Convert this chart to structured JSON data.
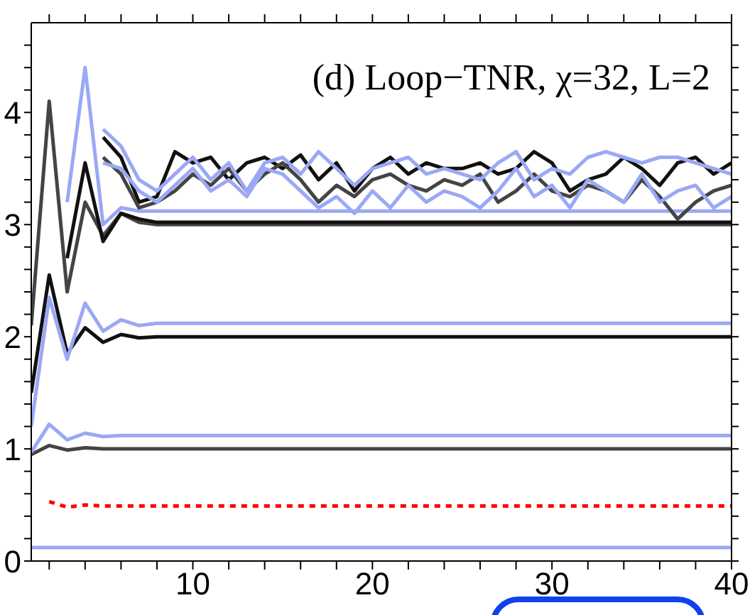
{
  "chart_data": {
    "type": "line",
    "title": "(d) Loop−TNR, χ=32, L=2",
    "x": [
      1,
      2,
      3,
      4,
      5,
      6,
      7,
      8,
      9,
      10,
      11,
      12,
      13,
      14,
      15,
      16,
      17,
      18,
      19,
      20,
      21,
      22,
      23,
      24,
      25,
      26,
      27,
      28,
      29,
      30,
      31,
      32,
      33,
      34,
      35,
      36,
      37,
      38,
      39,
      40
    ],
    "xlim": [
      1,
      40
    ],
    "xticks": [
      {
        "value": 2,
        "label": null
      },
      {
        "value": 4,
        "label": null
      },
      {
        "value": 6,
        "label": null
      },
      {
        "value": 8,
        "label": null
      },
      10,
      {
        "value": 12,
        "label": null
      },
      {
        "value": 14,
        "label": null
      },
      {
        "value": 16,
        "label": null
      },
      {
        "value": 18,
        "label": null
      },
      20,
      {
        "value": 22,
        "label": null
      },
      {
        "value": 24,
        "label": null
      },
      {
        "value": 26,
        "label": null
      },
      {
        "value": 28,
        "label": null
      },
      30,
      {
        "value": 32,
        "label": null
      },
      {
        "value": 34,
        "label": null
      },
      {
        "value": 36,
        "label": null
      },
      {
        "value": 38,
        "label": null
      },
      40
    ],
    "ylim": [
      0,
      4.8
    ],
    "yticks": [
      0,
      {
        "value": 0.2,
        "label": null
      },
      {
        "value": 0.4,
        "label": null
      },
      {
        "value": 0.6,
        "label": null
      },
      {
        "value": 0.8,
        "label": null
      },
      1,
      {
        "value": 1.2,
        "label": null
      },
      {
        "value": 1.4,
        "label": null
      },
      {
        "value": 1.6,
        "label": null
      },
      {
        "value": 1.8,
        "label": null
      },
      2,
      {
        "value": 2.2,
        "label": null
      },
      {
        "value": 2.4,
        "label": null
      },
      {
        "value": 2.6,
        "label": null
      },
      {
        "value": 2.8,
        "label": null
      },
      3,
      {
        "value": 3.2,
        "label": null
      },
      {
        "value": 3.4,
        "label": null
      },
      {
        "value": 3.6,
        "label": null
      },
      {
        "value": 3.8,
        "label": null
      },
      4,
      {
        "value": 4.2,
        "label": null
      },
      {
        "value": 4.4,
        "label": null
      },
      {
        "value": 4.6,
        "label": null
      }
    ],
    "grid": false,
    "legend": false,
    "marker": "none",
    "series": [
      {
        "color": "#9aa8f5",
        "values": [
          0.12,
          0.12,
          0.12,
          0.12,
          0.12,
          0.12,
          0.12,
          0.12,
          0.12,
          0.12,
          0.12,
          0.12,
          0.12,
          0.12,
          0.12,
          0.12,
          0.12,
          0.12,
          0.12,
          0.12,
          0.12,
          0.12,
          0.12,
          0.12,
          0.12,
          0.12,
          0.12,
          0.12,
          0.12,
          0.12,
          0.12,
          0.12,
          0.12,
          0.12,
          0.12,
          0.12,
          0.12,
          0.12,
          0.12,
          0.12
        ]
      },
      {
        "color": "#ff0000",
        "line_style": "dotted",
        "values": [
          null,
          0.53,
          0.48,
          0.5,
          0.49,
          0.49,
          0.49,
          0.49,
          0.49,
          0.49,
          0.49,
          0.49,
          0.49,
          0.49,
          0.49,
          0.49,
          0.49,
          0.49,
          0.49,
          0.49,
          0.49,
          0.49,
          0.49,
          0.49,
          0.49,
          0.49,
          0.49,
          0.49,
          0.49,
          0.49,
          0.49,
          0.49,
          0.49,
          0.49,
          0.49,
          0.49,
          0.49,
          0.49,
          0.49,
          0.49
        ]
      },
      {
        "color": "#444444",
        "values": [
          0.95,
          1.03,
          0.99,
          1.01,
          1.0,
          1.0,
          1.0,
          1.0,
          1.0,
          1.0,
          1.0,
          1.0,
          1.0,
          1.0,
          1.0,
          1.0,
          1.0,
          1.0,
          1.0,
          1.0,
          1.0,
          1.0,
          1.0,
          1.0,
          1.0,
          1.0,
          1.0,
          1.0,
          1.0,
          1.0,
          1.0,
          1.0,
          1.0,
          1.0,
          1.0,
          1.0,
          1.0,
          1.0,
          1.0,
          1.0
        ]
      },
      {
        "color": "#9aa8f5",
        "values": [
          0.97,
          1.22,
          1.08,
          1.14,
          1.11,
          1.12,
          1.12,
          1.12,
          1.12,
          1.12,
          1.12,
          1.12,
          1.12,
          1.12,
          1.12,
          1.12,
          1.12,
          1.12,
          1.12,
          1.12,
          1.12,
          1.12,
          1.12,
          1.12,
          1.12,
          1.12,
          1.12,
          1.12,
          1.12,
          1.12,
          1.12,
          1.12,
          1.12,
          1.12,
          1.12,
          1.12,
          1.12,
          1.12,
          1.12,
          1.12
        ]
      },
      {
        "color": "#111111",
        "values": [
          1.5,
          2.55,
          1.85,
          2.08,
          1.95,
          2.02,
          1.99,
          2.0,
          2.0,
          2.0,
          2.0,
          2.0,
          2.0,
          2.0,
          2.0,
          2.0,
          2.0,
          2.0,
          2.0,
          2.0,
          2.0,
          2.0,
          2.0,
          2.0,
          2.0,
          2.0,
          2.0,
          2.0,
          2.0,
          2.0,
          2.0,
          2.0,
          2.0,
          2.0,
          2.0,
          2.0,
          2.0,
          2.0,
          2.0,
          2.0
        ]
      },
      {
        "color": "#9aa8f5",
        "values": [
          1.2,
          2.35,
          1.8,
          2.3,
          2.05,
          2.15,
          2.1,
          2.12,
          2.12,
          2.12,
          2.12,
          2.12,
          2.12,
          2.12,
          2.12,
          2.12,
          2.12,
          2.12,
          2.12,
          2.12,
          2.12,
          2.12,
          2.12,
          2.12,
          2.12,
          2.12,
          2.12,
          2.12,
          2.12,
          2.12,
          2.12,
          2.12,
          2.12,
          2.12,
          2.12,
          2.12,
          2.12,
          2.12,
          2.12,
          2.12
        ]
      },
      {
        "color": "#444444",
        "values": [
          2.1,
          4.1,
          2.4,
          3.2,
          2.9,
          3.1,
          3.02,
          3.0,
          3.0,
          3.0,
          3.0,
          3.0,
          3.0,
          3.0,
          3.0,
          3.0,
          3.0,
          3.0,
          3.0,
          3.0,
          3.0,
          3.0,
          3.0,
          3.0,
          3.0,
          3.0,
          3.0,
          3.0,
          3.0,
          3.0,
          3.0,
          3.0,
          3.0,
          3.0,
          3.0,
          3.0,
          3.0,
          3.0,
          3.0,
          3.0
        ]
      },
      {
        "color": "#111111",
        "values": [
          null,
          null,
          2.7,
          3.55,
          2.85,
          3.1,
          3.05,
          3.02,
          3.02,
          3.02,
          3.02,
          3.02,
          3.02,
          3.02,
          3.02,
          3.02,
          3.02,
          3.02,
          3.02,
          3.02,
          3.02,
          3.02,
          3.02,
          3.02,
          3.02,
          3.02,
          3.02,
          3.02,
          3.02,
          3.02,
          3.02,
          3.02,
          3.02,
          3.02,
          3.02,
          3.02,
          3.02,
          3.02,
          3.02,
          3.02
        ]
      },
      {
        "color": "#9aa8f5",
        "values": [
          null,
          null,
          3.2,
          4.4,
          3.0,
          3.15,
          3.12,
          3.12,
          3.12,
          3.12,
          3.12,
          3.12,
          3.12,
          3.12,
          3.12,
          3.12,
          3.12,
          3.12,
          3.12,
          3.12,
          3.12,
          3.12,
          3.12,
          3.12,
          3.12,
          3.12,
          3.12,
          3.12,
          3.12,
          3.12,
          3.12,
          3.12,
          3.12,
          3.12,
          3.12,
          3.12,
          3.12,
          3.12,
          3.12,
          3.12
        ]
      },
      {
        "color": "#111111",
        "values": [
          null,
          null,
          null,
          null,
          3.78,
          3.6,
          3.2,
          3.25,
          3.65,
          3.55,
          3.6,
          3.4,
          3.55,
          3.6,
          3.5,
          3.62,
          3.4,
          3.55,
          3.3,
          3.5,
          3.6,
          3.45,
          3.55,
          3.5,
          3.5,
          3.55,
          3.45,
          3.5,
          3.65,
          3.55,
          3.3,
          3.4,
          3.45,
          3.6,
          3.5,
          3.35,
          3.55,
          3.6,
          3.45,
          3.55
        ]
      },
      {
        "color": "#444444",
        "values": [
          null,
          null,
          null,
          null,
          3.6,
          3.45,
          3.15,
          3.2,
          3.3,
          3.45,
          3.35,
          3.5,
          3.3,
          3.45,
          3.55,
          3.4,
          3.2,
          3.35,
          3.25,
          3.4,
          3.45,
          3.35,
          3.3,
          3.4,
          3.35,
          3.45,
          3.2,
          3.3,
          3.45,
          3.3,
          3.25,
          3.35,
          3.3,
          3.2,
          3.4,
          3.25,
          3.05,
          3.2,
          3.3,
          3.35
        ]
      },
      {
        "color": "#9aa8f5",
        "values": [
          null,
          null,
          null,
          null,
          3.85,
          3.7,
          3.4,
          3.3,
          3.45,
          3.6,
          3.4,
          3.55,
          3.3,
          3.55,
          3.6,
          3.45,
          3.65,
          3.5,
          3.35,
          3.5,
          3.55,
          3.6,
          3.45,
          3.5,
          3.45,
          3.4,
          3.55,
          3.65,
          3.4,
          3.5,
          3.45,
          3.6,
          3.65,
          3.6,
          3.55,
          3.6,
          3.6,
          3.55,
          3.5,
          3.45
        ]
      },
      {
        "color": "#9aa8f5",
        "values": [
          null,
          null,
          null,
          null,
          3.55,
          3.5,
          3.3,
          3.2,
          3.35,
          3.5,
          3.3,
          3.4,
          3.25,
          3.5,
          3.45,
          3.3,
          3.15,
          3.25,
          3.1,
          3.3,
          3.15,
          3.35,
          3.2,
          3.3,
          3.25,
          3.15,
          3.3,
          3.5,
          3.25,
          3.35,
          3.15,
          3.4,
          3.3,
          3.2,
          3.45,
          3.2,
          3.3,
          3.35,
          3.15,
          3.25
        ]
      }
    ]
  }
}
